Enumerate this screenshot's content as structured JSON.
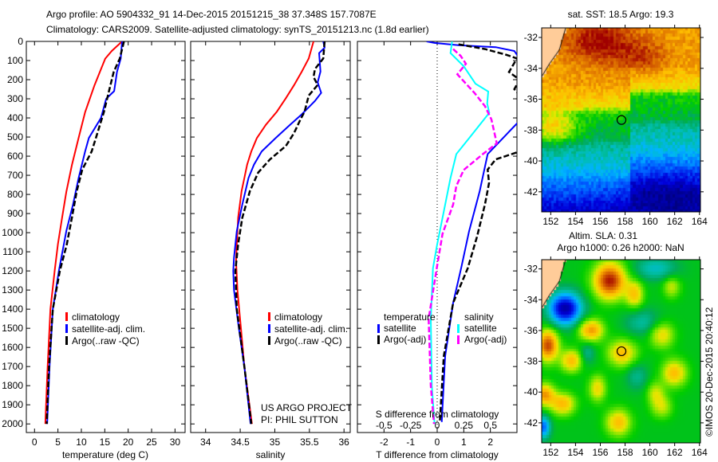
{
  "header": {
    "line1": "Argo profile: AO 5904332_91 14-Dec-2015 20151215_38 37.348S 157.7087E",
    "line2": "Climatology: CARS2009. Satellite-adjusted climatology: synTS_20151213.nc (1.8d earlier)"
  },
  "credits": {
    "line1": "US ARGO PROJECT",
    "line2": "PI: PHIL SUTTON"
  },
  "watermark": "©IMOS 20-Dec-2015 20:40:12",
  "legend_profiles": {
    "clim": "climatology",
    "sat": "satellite-adj. clim.",
    "argo": "Argo(..raw -QC)"
  },
  "legend_diff": {
    "temp_title": "temperature",
    "sal_title": "salinity",
    "temp_sat": "satellite",
    "temp_argo": "Argo(-adj)",
    "sal_sat": "satellite",
    "sal_argo": "Argo(-adj)"
  },
  "colors": {
    "climatology": "#ff0000",
    "satellite": "#0000ff",
    "argo": "#000000",
    "sal_satellite": "#00ffff",
    "sal_argo": "#ff00ff",
    "land": "#ffcc99"
  },
  "chart_data": [
    {
      "type": "line",
      "xlabel": "temperature (deg C)",
      "ylabel": "depth (m)",
      "xlim": [
        -1.75,
        32.15
      ],
      "ylim": [
        2045,
        0
      ],
      "xticks": [
        0,
        5,
        10,
        15,
        20,
        25,
        30
      ],
      "yticks": [
        0,
        100,
        200,
        300,
        400,
        500,
        600,
        700,
        800,
        900,
        1000,
        1100,
        1200,
        1300,
        1400,
        1500,
        1600,
        1700,
        1800,
        1900,
        2000
      ],
      "series": [
        {
          "name": "climatology",
          "color": "#ff0000",
          "depth": [
            0,
            50,
            90,
            145,
            230,
            370,
            505,
            645,
            785,
            920,
            1060,
            1200,
            1400,
            1700,
            2000
          ],
          "values": [
            18.7,
            16.5,
            15.1,
            14.2,
            12.8,
            10.8,
            9.4,
            8.0,
            6.8,
            5.9,
            5.0,
            4.3,
            3.4,
            2.8,
            2.3
          ]
        },
        {
          "name": "satellite-adj. clim.",
          "color": "#0000ff",
          "depth": [
            0,
            90,
            160,
            260,
            300,
            400,
            505,
            575,
            715,
            855,
            990,
            1200,
            1400,
            1700,
            2000
          ],
          "values": [
            18.7,
            18.4,
            17.6,
            17.0,
            15.3,
            14.2,
            11.6,
            10.8,
            9.4,
            8.2,
            6.8,
            5.2,
            3.9,
            3.2,
            2.7
          ]
        },
        {
          "name": "Argo(..raw -QC)",
          "color": "#000000",
          "dashed": true,
          "depth": [
            0,
            90,
            160,
            270,
            370,
            505,
            575,
            670,
            785,
            920,
            1060,
            1200,
            1400,
            1700,
            2000
          ],
          "values": [
            19.1,
            18.2,
            16.9,
            15.8,
            14.8,
            13.1,
            12.2,
            10.2,
            9.0,
            8.0,
            6.9,
            5.4,
            3.9,
            3.1,
            2.6
          ]
        }
      ]
    },
    {
      "type": "line",
      "xlabel": "salinity",
      "xlim": [
        33.784,
        36.09
      ],
      "ylim": [
        2045,
        0
      ],
      "xticks": [
        34,
        34.5,
        35,
        35.5,
        36
      ],
      "series": [
        {
          "name": "climatology",
          "color": "#ff0000",
          "depth": [
            0,
            89,
            158,
            228,
            297,
            367,
            436,
            506,
            575,
            644,
            714,
            783,
            922,
            1061,
            1150,
            1300,
            1500,
            1700,
            2000
          ],
          "values": [
            35.56,
            35.49,
            35.39,
            35.28,
            35.16,
            35.03,
            34.87,
            34.74,
            34.66,
            34.6,
            34.56,
            34.52,
            34.47,
            34.45,
            34.44,
            34.46,
            34.51,
            34.56,
            34.67
          ]
        },
        {
          "name": "satellite-adj. clim.",
          "color": "#0000ff",
          "depth": [
            0,
            33,
            61,
            158,
            214,
            269,
            311,
            381,
            436,
            506,
            575,
            644,
            714,
            853,
            992,
            1131,
            1200,
            1300,
            1500,
            1700,
            2000
          ],
          "values": [
            35.7,
            35.72,
            35.64,
            35.66,
            35.62,
            35.67,
            35.58,
            35.39,
            35.22,
            35.01,
            34.81,
            34.7,
            34.62,
            34.53,
            34.45,
            34.41,
            34.4,
            34.41,
            34.48,
            34.56,
            34.65
          ]
        },
        {
          "name": "Argo(..raw -QC)",
          "color": "#000000",
          "dashed": true,
          "depth": [
            0,
            89,
            144,
            186,
            228,
            283,
            367,
            408,
            478,
            547,
            617,
            686,
            783,
            922,
            1061,
            1200,
            1400,
            1700,
            2000
          ],
          "values": [
            35.72,
            35.7,
            35.58,
            35.56,
            35.62,
            35.49,
            35.43,
            35.37,
            35.28,
            35.16,
            34.93,
            34.76,
            34.64,
            34.53,
            34.47,
            34.43,
            34.45,
            34.56,
            34.66
          ]
        }
      ]
    },
    {
      "type": "line",
      "xlabel": "T difference from climatology",
      "x2label": "S difference from climatology",
      "xlim": [
        -3,
        3
      ],
      "x2lim": [
        -0.75,
        0.75
      ],
      "ylim": [
        2045,
        0
      ],
      "xticks": [
        -2,
        -1,
        0,
        1,
        2
      ],
      "x2ticks": [
        -0.5,
        -0.25,
        0,
        0.25,
        0.5
      ],
      "series": [
        {
          "name": "temperature satellite",
          "axis": "T",
          "color": "#0000ff",
          "depth": [
            0,
            8,
            20,
            30,
            50,
            89,
            200,
            429,
            589,
            783,
            992,
            1186,
            1367,
            1645,
            1990
          ],
          "values": [
            -0.4,
            -0.1,
            0.8,
            2.2,
            2.9,
            3.1,
            4.0,
            3.0,
            1.9,
            1.6,
            1.2,
            0.9,
            0.6,
            0.3,
            0.17
          ]
        },
        {
          "name": "temperature Argo(-adj)",
          "axis": "T",
          "color": "#000000",
          "dashed": true,
          "depth": [
            15,
            40,
            70,
            89,
            160,
            200,
            250,
            280,
            330,
            500,
            580,
            617,
            670,
            740,
            850,
            1020,
            1186,
            1367,
            1645,
            1990
          ],
          "values": [
            0.8,
            1.8,
            2.6,
            3.0,
            2.7,
            3.1,
            2.9,
            3.1,
            3.5,
            3.5,
            3.0,
            2.2,
            1.9,
            1.95,
            1.8,
            1.5,
            1.15,
            0.6,
            0.25,
            0.1
          ]
        },
        {
          "name": "salinity satellite",
          "axis": "S",
          "color": "#00ffff",
          "depth": [
            0,
            61,
            130,
            221,
            262,
            325,
            373,
            506,
            589,
            714,
            922,
            1061,
            1186,
            1450,
            1800,
            2000
          ],
          "values": [
            0.14,
            0.125,
            0.25,
            0.36,
            0.48,
            0.47,
            0.49,
            0.3,
            0.18,
            0.125,
            0.05,
            0.0,
            -0.04,
            -0.06,
            -0.05,
            -0.025
          ]
        },
        {
          "name": "salinity Argo(-adj)",
          "axis": "S",
          "color": "#ff00ff",
          "dashed": true,
          "depth": [
            40,
            75,
            117,
            172,
            269,
            339,
            408,
            533,
            589,
            672,
            756,
            853,
            1006,
            1172,
            1450,
            1800,
            2000
          ],
          "values": [
            0.15,
            0.22,
            0.27,
            0.19,
            0.35,
            0.45,
            0.51,
            0.56,
            0.43,
            0.25,
            0.18,
            0.15,
            0.05,
            0.0,
            -0.08,
            -0.06,
            -0.03
          ]
        }
      ]
    },
    {
      "type": "heatmap",
      "title": "sat. SST: 18.5 Argo: 19.3",
      "lon_range": [
        151.27,
        164.08
      ],
      "lat_range": [
        -43.3,
        -31.38
      ],
      "lon_ticks": [
        152,
        154,
        156,
        158,
        160,
        162,
        164
      ],
      "lat_ticks": [
        -32,
        -34,
        -36,
        -38,
        -40,
        -42
      ],
      "marker": {
        "lon": 157.7087,
        "lat": -37.348
      }
    },
    {
      "type": "heatmap",
      "title": "Altim. SLA: 0.31",
      "subtitle": "Argo h1000: 0.26 h2000: NaN",
      "lon_range": [
        151.27,
        164.08
      ],
      "lat_range": [
        -43.3,
        -31.4
      ],
      "lon_ticks": [
        152,
        154,
        156,
        158,
        160,
        162,
        164
      ],
      "lat_ticks": [
        -32,
        -34,
        -36,
        -38,
        -40,
        -42
      ],
      "marker": {
        "lon": 157.7087,
        "lat": -37.348
      }
    }
  ]
}
